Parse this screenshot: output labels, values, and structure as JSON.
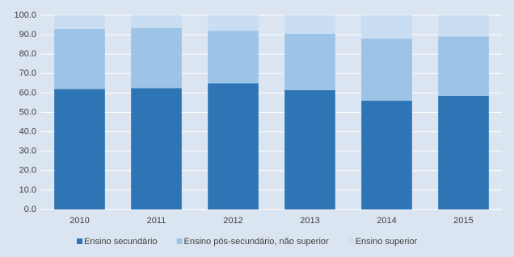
{
  "chart_data": {
    "type": "stacked_bar",
    "categories": [
      "2010",
      "2011",
      "2012",
      "2013",
      "2014",
      "2015"
    ],
    "series": [
      {
        "name": "Ensino secundário",
        "color": "#2e75b6",
        "values": [
          62,
          62.5,
          65,
          61.5,
          56,
          58.5
        ]
      },
      {
        "name": "Ensino pós-secundário, não superior",
        "color": "#9dc3e6",
        "values": [
          31,
          31,
          27,
          29,
          32,
          30.5
        ]
      },
      {
        "name": "Ensino superior",
        "color": "#c9def2",
        "values": [
          7,
          6.5,
          8,
          9.5,
          12,
          11
        ]
      }
    ],
    "ylim": [
      0,
      100
    ],
    "yticks": [
      {
        "value": 0,
        "label": "0.0"
      },
      {
        "value": 10,
        "label": "10.0"
      },
      {
        "value": 20,
        "label": "20.0"
      },
      {
        "value": 30,
        "label": "30.0"
      },
      {
        "value": 40,
        "label": "40.0"
      },
      {
        "value": 50,
        "label": "50.0"
      },
      {
        "value": 60,
        "label": "60.0"
      },
      {
        "value": 70,
        "label": "70.0"
      },
      {
        "value": 80,
        "label": "80.0"
      },
      {
        "value": 90,
        "label": "90.0"
      },
      {
        "value": 100,
        "label": "100.0"
      }
    ],
    "grid": true,
    "legend": "bottom"
  }
}
